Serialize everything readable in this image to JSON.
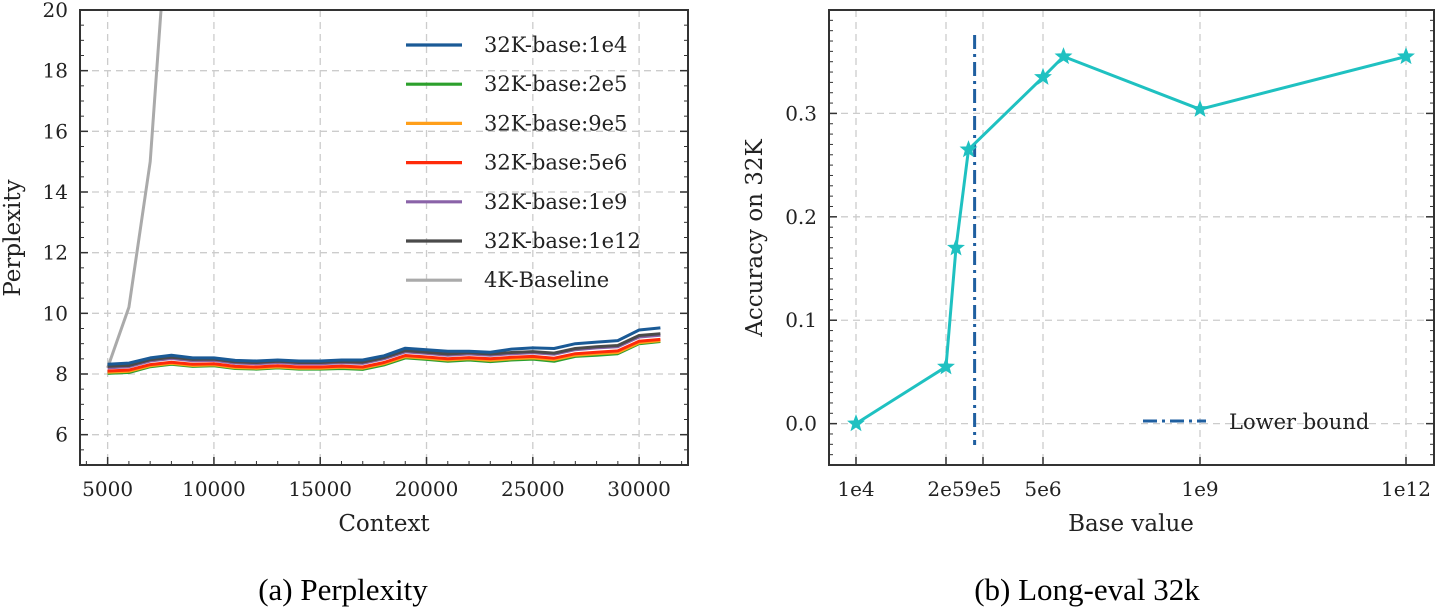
{
  "chart_data": [
    {
      "type": "line",
      "caption": "(a) Perplexity",
      "xlabel": "Context",
      "ylabel": "Perplexity",
      "xlim": [
        3700,
        32300
      ],
      "ylim": [
        5,
        20
      ],
      "xticks": [
        5000,
        10000,
        15000,
        20000,
        25000,
        30000
      ],
      "yticks": [
        6,
        8,
        10,
        12,
        14,
        16,
        18,
        20
      ],
      "grid": true,
      "legend_position": "top-right",
      "series": [
        {
          "name": "32K-base:1e4",
          "color": "#1a5a96",
          "x": [
            5000,
            6000,
            7000,
            8000,
            9000,
            10000,
            11000,
            12000,
            13000,
            14000,
            15000,
            16000,
            17000,
            18000,
            19000,
            20000,
            21000,
            22000,
            23000,
            24000,
            25000,
            26000,
            27000,
            28000,
            29000,
            30000,
            31000
          ],
          "y": [
            8.32,
            8.36,
            8.53,
            8.62,
            8.53,
            8.53,
            8.45,
            8.43,
            8.46,
            8.43,
            8.43,
            8.46,
            8.46,
            8.6,
            8.85,
            8.8,
            8.75,
            8.75,
            8.72,
            8.82,
            8.86,
            8.84,
            9.0,
            9.05,
            9.1,
            9.45,
            9.52
          ]
        },
        {
          "name": "32K-base:2e5",
          "color": "#2ca02c",
          "x": [
            5000,
            6000,
            7000,
            8000,
            9000,
            10000,
            11000,
            12000,
            13000,
            14000,
            15000,
            16000,
            17000,
            18000,
            19000,
            20000,
            21000,
            22000,
            23000,
            24000,
            25000,
            26000,
            27000,
            28000,
            29000,
            30000,
            31000
          ],
          "y": [
            8.02,
            8.05,
            8.24,
            8.32,
            8.25,
            8.27,
            8.18,
            8.16,
            8.2,
            8.16,
            8.16,
            8.18,
            8.15,
            8.3,
            8.53,
            8.48,
            8.42,
            8.46,
            8.41,
            8.46,
            8.49,
            8.42,
            8.58,
            8.62,
            8.67,
            9.0,
            9.07
          ]
        },
        {
          "name": "32K-base:9e5",
          "color": "#ff9f1a",
          "x": [
            5000,
            6000,
            7000,
            8000,
            9000,
            10000,
            11000,
            12000,
            13000,
            14000,
            15000,
            16000,
            17000,
            18000,
            19000,
            20000,
            21000,
            22000,
            23000,
            24000,
            25000,
            26000,
            27000,
            28000,
            29000,
            30000,
            31000
          ],
          "y": [
            8.06,
            8.09,
            8.27,
            8.35,
            8.28,
            8.3,
            8.21,
            8.19,
            8.23,
            8.19,
            8.19,
            8.22,
            8.19,
            8.34,
            8.57,
            8.52,
            8.46,
            8.5,
            8.45,
            8.5,
            8.53,
            8.47,
            8.62,
            8.67,
            8.71,
            9.03,
            9.1
          ]
        },
        {
          "name": "32K-base:5e6",
          "color": "#ff2a0a",
          "x": [
            5000,
            6000,
            7000,
            8000,
            9000,
            10000,
            11000,
            12000,
            13000,
            14000,
            15000,
            16000,
            17000,
            18000,
            19000,
            20000,
            21000,
            22000,
            23000,
            24000,
            25000,
            26000,
            27000,
            28000,
            29000,
            30000,
            31000
          ],
          "y": [
            8.1,
            8.13,
            8.31,
            8.39,
            8.32,
            8.34,
            8.25,
            8.23,
            8.27,
            8.23,
            8.23,
            8.26,
            8.23,
            8.38,
            8.61,
            8.56,
            8.5,
            8.54,
            8.5,
            8.55,
            8.58,
            8.52,
            8.67,
            8.72,
            8.76,
            9.08,
            9.14
          ]
        },
        {
          "name": "32K-base:1e9",
          "color": "#8a63a8",
          "x": [
            5000,
            6000,
            7000,
            8000,
            9000,
            10000,
            11000,
            12000,
            13000,
            14000,
            15000,
            16000,
            17000,
            18000,
            19000,
            20000,
            21000,
            22000,
            23000,
            24000,
            25000,
            26000,
            27000,
            28000,
            29000,
            30000,
            31000
          ],
          "y": [
            8.2,
            8.24,
            8.43,
            8.51,
            8.44,
            8.45,
            8.36,
            8.34,
            8.38,
            8.34,
            8.34,
            8.37,
            8.35,
            8.5,
            8.73,
            8.68,
            8.62,
            8.66,
            8.62,
            8.67,
            8.7,
            8.65,
            8.8,
            8.86,
            8.9,
            9.22,
            9.28
          ]
        },
        {
          "name": "32K-base:1e12",
          "color": "#4a4a4a",
          "x": [
            5000,
            6000,
            7000,
            8000,
            9000,
            10000,
            11000,
            12000,
            13000,
            14000,
            15000,
            16000,
            17000,
            18000,
            19000,
            20000,
            21000,
            22000,
            23000,
            24000,
            25000,
            26000,
            27000,
            28000,
            29000,
            30000,
            31000
          ],
          "y": [
            8.25,
            8.28,
            8.47,
            8.55,
            8.48,
            8.49,
            8.4,
            8.38,
            8.42,
            8.38,
            8.38,
            8.41,
            8.39,
            8.54,
            8.77,
            8.72,
            8.66,
            8.7,
            8.66,
            8.71,
            8.74,
            8.69,
            8.84,
            8.9,
            8.94,
            9.27,
            9.33
          ]
        },
        {
          "name": "4K-Baseline",
          "color": "#aaaaaa",
          "x": [
            5000,
            6000,
            7000,
            7500,
            7800
          ],
          "y": [
            8.2,
            10.2,
            15.0,
            19.9,
            22.0
          ]
        }
      ]
    },
    {
      "type": "line",
      "caption": "(b) Long-eval 32k",
      "xlabel": "Base value",
      "ylabel": "Accuracy on 32K",
      "xticks": [
        "1e4",
        "2e5",
        "9e5",
        "5e6",
        "1e9",
        "1e12"
      ],
      "ylim": [
        -0.04,
        0.4
      ],
      "yticks": [
        "0.0",
        "0.1",
        "0.2",
        "0.3"
      ],
      "grid": true,
      "legend_position": "bottom-right",
      "series": [
        {
          "color": "#1fc1c1",
          "marker": "star",
          "x": [
            "1e4",
            "2e5",
            "3e5",
            "5e5",
            "5e6",
            "1e7",
            "1e9",
            "1e12"
          ],
          "y": [
            0.0,
            0.055,
            0.17,
            0.265,
            0.335,
            0.355,
            0.304,
            0.355
          ]
        }
      ],
      "reference_line": {
        "name": "Lower bound",
        "x": "6.4e5",
        "style": "dash-dot",
        "color": "#1f5fa0"
      }
    }
  ]
}
